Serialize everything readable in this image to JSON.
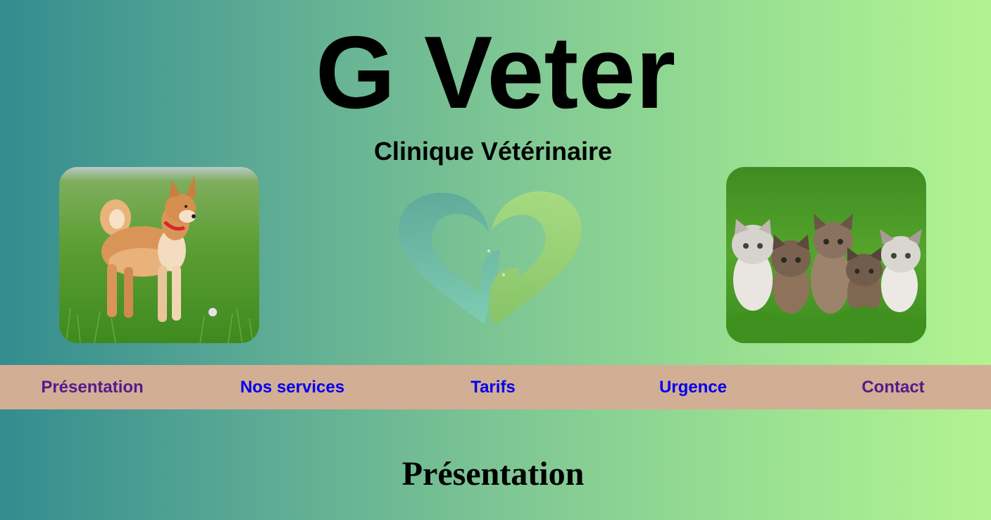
{
  "header": {
    "title": "G Veter",
    "subtitle": "Clinique Vétérinaire"
  },
  "images": {
    "left": "shiba-inu-dog-photo",
    "center": "heart-pet-logo",
    "right": "kittens-photo"
  },
  "nav": {
    "items": [
      {
        "label": "Présentation",
        "state": "visited"
      },
      {
        "label": "Nos services",
        "state": "link"
      },
      {
        "label": "Tarifs",
        "state": "link"
      },
      {
        "label": "Urgence",
        "state": "link"
      },
      {
        "label": "Contact",
        "state": "visited"
      }
    ]
  },
  "main": {
    "heading": "Présentation"
  },
  "colors": {
    "gradient_start": "#338c8e",
    "gradient_end": "#b2f392",
    "nav_background": "#d2ae94",
    "link": "#0000ee",
    "visited_link": "#551a8b"
  }
}
